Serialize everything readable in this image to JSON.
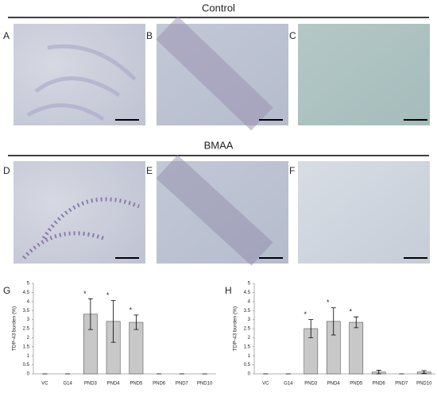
{
  "headers": [
    "Control",
    "BMAA"
  ],
  "image_panels": [
    "A",
    "B",
    "C",
    "D",
    "E",
    "F"
  ],
  "chart_data": [
    {
      "type": "bar",
      "panel": "G",
      "ylabel": "TDP-43 burden (%)",
      "categories": [
        "VC",
        "G14",
        "PND3",
        "PND4",
        "PND5",
        "PND6",
        "PND7",
        "PND10"
      ],
      "values": [
        0,
        0,
        3.3,
        2.9,
        2.85,
        0,
        0,
        0
      ],
      "errors": [
        0,
        0,
        0.85,
        1.15,
        0.4,
        0,
        0,
        0
      ],
      "significance": [
        null,
        null,
        "*",
        "*",
        "*",
        null,
        null,
        null
      ],
      "color": "#c8c8c8",
      "ylim": [
        0,
        5
      ],
      "yticks": [
        0,
        0.5,
        1,
        1.5,
        2,
        2.5,
        3,
        3.5,
        4,
        4.5,
        5
      ],
      "grid": false
    },
    {
      "type": "bar",
      "panel": "H",
      "ylabel": "TDP-43 burden (%)",
      "categories": [
        "VC",
        "G14",
        "PND3",
        "PND4",
        "PND5",
        "PND6",
        "PND7",
        "PND10"
      ],
      "values": [
        0,
        0,
        2.5,
        2.9,
        2.85,
        0.1,
        0,
        0.1
      ],
      "errors": [
        0,
        0,
        0.5,
        0.75,
        0.3,
        0.1,
        0,
        0.08
      ],
      "significance": [
        null,
        null,
        "*",
        "*",
        "*",
        null,
        null,
        null
      ],
      "color": "#c8c8c8",
      "ylim": [
        0,
        5
      ],
      "yticks": [
        0,
        0.5,
        1,
        1.5,
        2,
        2.5,
        3,
        3.5,
        4,
        4.5,
        5
      ],
      "grid": false
    }
  ]
}
